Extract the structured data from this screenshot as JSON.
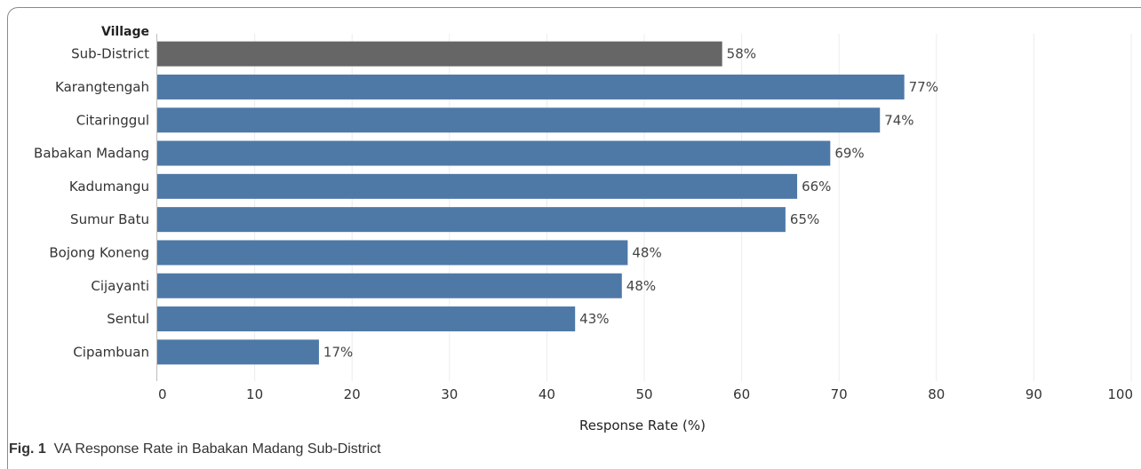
{
  "chart_data": {
    "type": "bar",
    "orientation": "horizontal",
    "category_axis_title": "Village",
    "categories": [
      "Sub-District",
      "Karangtengah",
      "Citaringgul",
      "Babakan Madang",
      "Kadumangu",
      "Sumur Batu",
      "Bojong Koneng",
      "Cijayanti",
      "Sentul",
      "Cipambuan"
    ],
    "values": [
      58,
      76.7,
      74.2,
      69.1,
      65.7,
      64.5,
      48.3,
      47.7,
      42.9,
      16.6
    ],
    "value_labels": [
      "58%",
      "77%",
      "74%",
      "69%",
      "66%",
      "65%",
      "48%",
      "48%",
      "43%",
      "17%"
    ],
    "bar_colors": [
      "#666666",
      "#4e79a7",
      "#4e79a7",
      "#4e79a7",
      "#4e79a7",
      "#4e79a7",
      "#4e79a7",
      "#4e79a7",
      "#4e79a7",
      "#4e79a7"
    ],
    "xlabel": "Response Rate (%)",
    "xlim": [
      0,
      100
    ],
    "xticks": [
      "0",
      "10",
      "20",
      "30",
      "40",
      "50",
      "60",
      "70",
      "80",
      "90",
      "100"
    ],
    "grid": "vertical"
  },
  "caption": {
    "prefix": "Fig. 1",
    "text": "VA Response Rate in Babakan Madang Sub-District"
  }
}
